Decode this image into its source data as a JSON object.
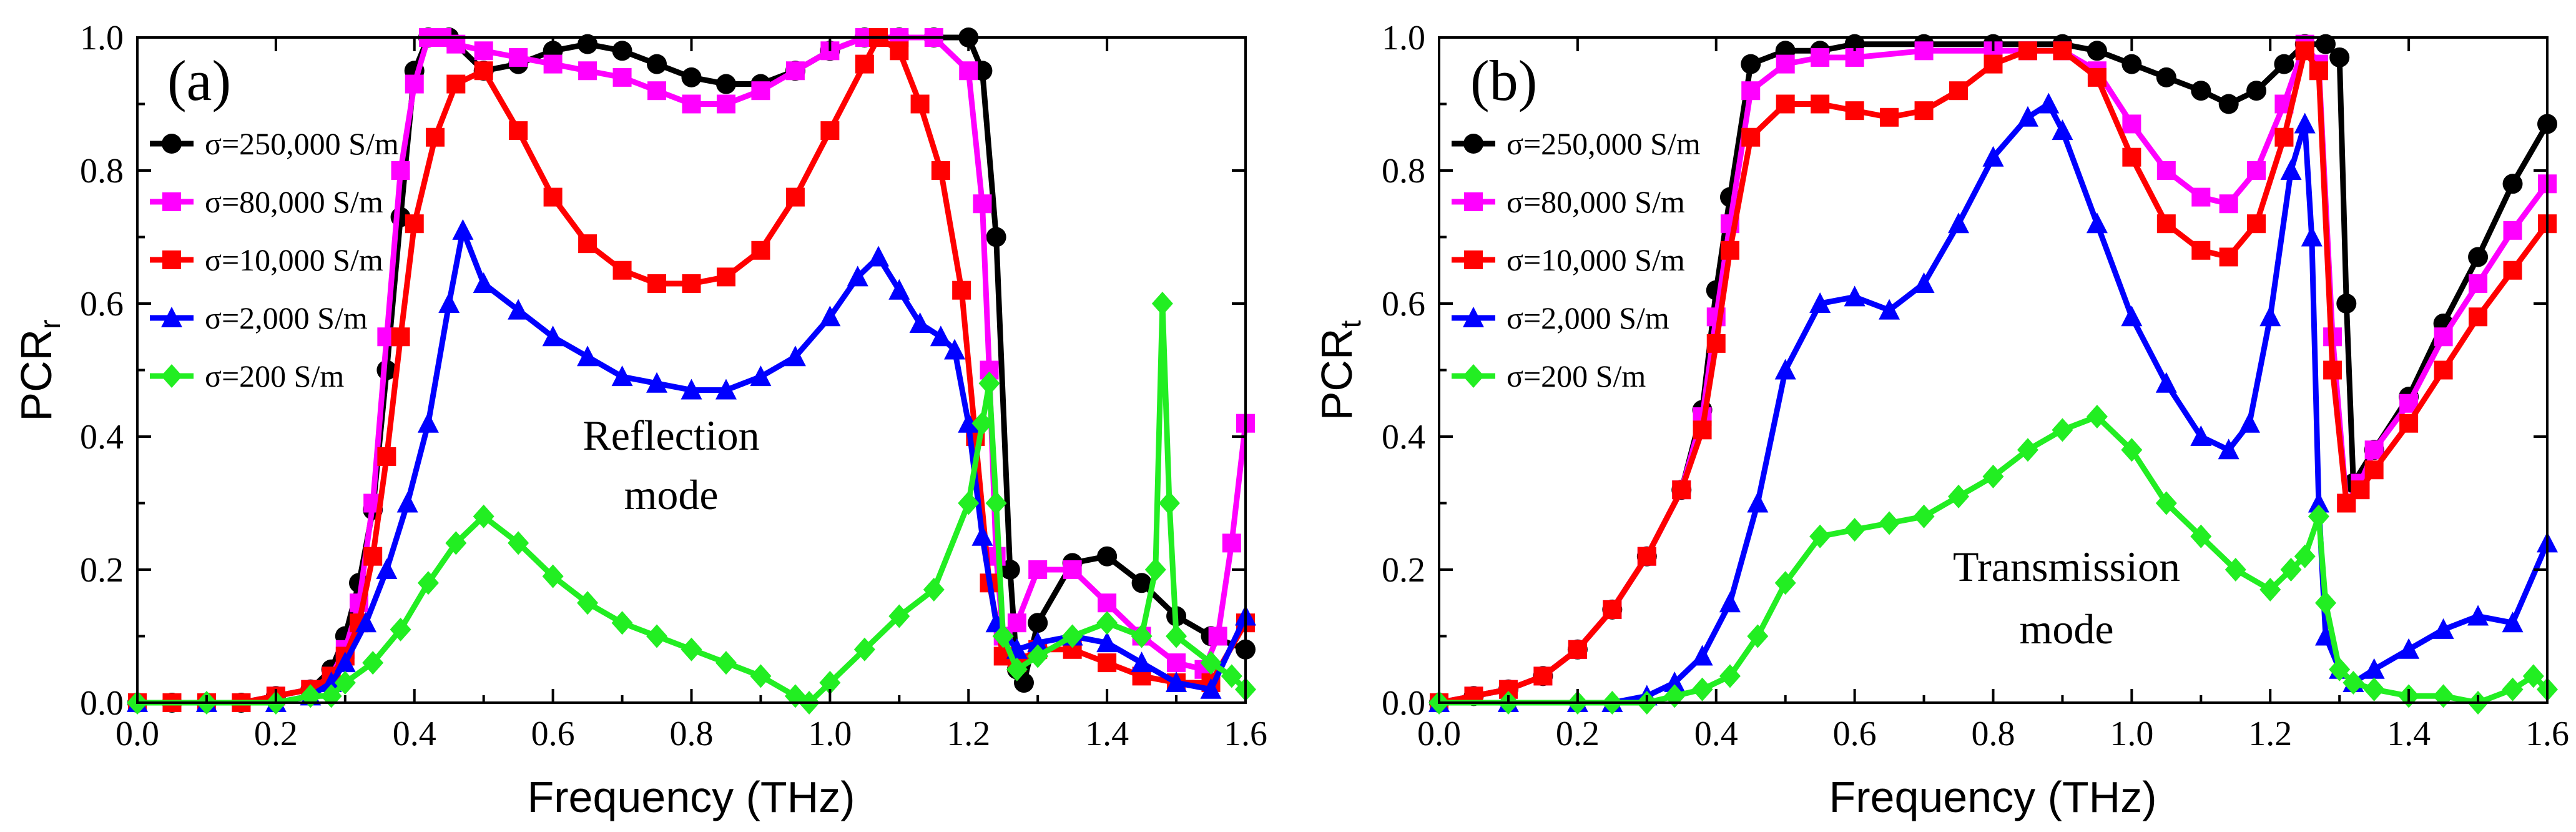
{
  "chart_data": [
    {
      "panel": "(a)",
      "type": "line",
      "xlabel": "Frequency (THz)",
      "ylabel_main": "PCR",
      "ylabel_sub": "r",
      "xlim": [
        0.0,
        1.6
      ],
      "ylim": [
        0.0,
        1.0
      ],
      "xticks": [
        "0.0",
        "0.2",
        "0.4",
        "0.6",
        "0.8",
        "1.0",
        "1.2",
        "1.4",
        "1.6"
      ],
      "yticks": [
        "0.0",
        "0.2",
        "0.4",
        "0.6",
        "0.8",
        "1.0"
      ],
      "annotation": [
        "Reflection",
        "mode"
      ],
      "series": [
        {
          "name": "σ=250,000 S/m",
          "color": "#000000",
          "marker": "circle",
          "x": [
            0.0,
            0.05,
            0.1,
            0.15,
            0.2,
            0.25,
            0.28,
            0.3,
            0.32,
            0.34,
            0.36,
            0.38,
            0.4,
            0.42,
            0.45,
            0.5,
            0.55,
            0.6,
            0.65,
            0.7,
            0.75,
            0.8,
            0.85,
            0.9,
            0.95,
            1.0,
            1.05,
            1.1,
            1.15,
            1.2,
            1.22,
            1.24,
            1.26,
            1.27,
            1.28,
            1.3,
            1.35,
            1.4,
            1.45,
            1.5,
            1.55,
            1.6
          ],
          "y": [
            0.0,
            0.0,
            0.0,
            0.0,
            0.01,
            0.02,
            0.05,
            0.1,
            0.18,
            0.29,
            0.5,
            0.73,
            0.95,
            1.0,
            1.0,
            0.95,
            0.96,
            0.98,
            0.99,
            0.98,
            0.96,
            0.94,
            0.93,
            0.93,
            0.95,
            0.98,
            1.0,
            1.0,
            1.0,
            1.0,
            0.95,
            0.7,
            0.2,
            0.05,
            0.03,
            0.12,
            0.21,
            0.22,
            0.18,
            0.13,
            0.1,
            0.08
          ]
        },
        {
          "name": "σ=80,000 S/m",
          "color": "#ff00ff",
          "marker": "square",
          "x": [
            0.0,
            0.05,
            0.1,
            0.15,
            0.2,
            0.25,
            0.28,
            0.3,
            0.32,
            0.34,
            0.36,
            0.38,
            0.4,
            0.42,
            0.44,
            0.46,
            0.5,
            0.55,
            0.6,
            0.65,
            0.7,
            0.75,
            0.8,
            0.85,
            0.9,
            0.95,
            1.0,
            1.05,
            1.1,
            1.15,
            1.2,
            1.22,
            1.23,
            1.24,
            1.25,
            1.27,
            1.3,
            1.35,
            1.4,
            1.45,
            1.5,
            1.54,
            1.56,
            1.58,
            1.6
          ],
          "y": [
            0.0,
            0.0,
            0.0,
            0.0,
            0.01,
            0.02,
            0.04,
            0.08,
            0.15,
            0.3,
            0.55,
            0.8,
            0.93,
            1.0,
            1.0,
            0.99,
            0.98,
            0.97,
            0.96,
            0.95,
            0.94,
            0.92,
            0.9,
            0.9,
            0.92,
            0.95,
            0.98,
            1.0,
            1.0,
            1.0,
            0.95,
            0.75,
            0.5,
            0.22,
            0.1,
            0.12,
            0.2,
            0.2,
            0.15,
            0.1,
            0.06,
            0.05,
            0.1,
            0.24,
            0.42
          ]
        },
        {
          "name": "σ=10,000 S/m",
          "color": "#ff0000",
          "marker": "square",
          "x": [
            0.0,
            0.05,
            0.1,
            0.15,
            0.2,
            0.25,
            0.28,
            0.3,
            0.32,
            0.34,
            0.36,
            0.38,
            0.4,
            0.43,
            0.46,
            0.5,
            0.55,
            0.6,
            0.65,
            0.7,
            0.75,
            0.8,
            0.85,
            0.9,
            0.95,
            1.0,
            1.05,
            1.07,
            1.1,
            1.13,
            1.16,
            1.19,
            1.21,
            1.23,
            1.25,
            1.27,
            1.3,
            1.35,
            1.4,
            1.45,
            1.5,
            1.55,
            1.6
          ],
          "y": [
            0.0,
            0.0,
            0.0,
            0.0,
            0.01,
            0.02,
            0.04,
            0.07,
            0.12,
            0.22,
            0.37,
            0.55,
            0.72,
            0.85,
            0.93,
            0.95,
            0.86,
            0.76,
            0.69,
            0.65,
            0.63,
            0.63,
            0.64,
            0.68,
            0.76,
            0.86,
            0.96,
            1.0,
            0.98,
            0.9,
            0.8,
            0.62,
            0.4,
            0.18,
            0.07,
            0.06,
            0.08,
            0.08,
            0.06,
            0.04,
            0.03,
            0.03,
            0.12
          ]
        },
        {
          "name": "σ=2,000 S/m",
          "color": "#0000ff",
          "marker": "triangle",
          "x": [
            0.0,
            0.1,
            0.2,
            0.25,
            0.28,
            0.3,
            0.33,
            0.36,
            0.39,
            0.42,
            0.45,
            0.47,
            0.5,
            0.55,
            0.6,
            0.65,
            0.7,
            0.75,
            0.8,
            0.85,
            0.9,
            0.95,
            1.0,
            1.04,
            1.07,
            1.1,
            1.13,
            1.16,
            1.18,
            1.2,
            1.22,
            1.24,
            1.27,
            1.3,
            1.35,
            1.4,
            1.45,
            1.5,
            1.55,
            1.6
          ],
          "y": [
            0.0,
            0.0,
            0.0,
            0.01,
            0.03,
            0.06,
            0.12,
            0.2,
            0.3,
            0.42,
            0.6,
            0.71,
            0.63,
            0.59,
            0.55,
            0.52,
            0.49,
            0.48,
            0.47,
            0.47,
            0.49,
            0.52,
            0.58,
            0.64,
            0.67,
            0.62,
            0.57,
            0.55,
            0.53,
            0.42,
            0.25,
            0.12,
            0.08,
            0.09,
            0.1,
            0.09,
            0.06,
            0.03,
            0.02,
            0.13
          ]
        },
        {
          "name": "σ=200 S/m",
          "color": "#22ee22",
          "marker": "diamond",
          "x": [
            0.0,
            0.1,
            0.2,
            0.25,
            0.28,
            0.3,
            0.34,
            0.38,
            0.42,
            0.46,
            0.5,
            0.55,
            0.6,
            0.65,
            0.7,
            0.75,
            0.8,
            0.85,
            0.9,
            0.95,
            0.97,
            1.0,
            1.05,
            1.1,
            1.15,
            1.2,
            1.22,
            1.23,
            1.24,
            1.25,
            1.27,
            1.3,
            1.35,
            1.4,
            1.45,
            1.47,
            1.48,
            1.49,
            1.5,
            1.55,
            1.58,
            1.6
          ],
          "y": [
            0.0,
            0.0,
            0.0,
            0.01,
            0.01,
            0.03,
            0.06,
            0.11,
            0.18,
            0.24,
            0.28,
            0.24,
            0.19,
            0.15,
            0.12,
            0.1,
            0.08,
            0.06,
            0.04,
            0.01,
            0.0,
            0.03,
            0.08,
            0.13,
            0.17,
            0.3,
            0.42,
            0.48,
            0.3,
            0.1,
            0.05,
            0.07,
            0.1,
            0.12,
            0.1,
            0.2,
            0.6,
            0.3,
            0.1,
            0.06,
            0.04,
            0.02
          ]
        }
      ]
    },
    {
      "panel": "(b)",
      "type": "line",
      "xlabel": "Frequency (THz)",
      "ylabel_main": "PCR",
      "ylabel_sub": "t",
      "xlim": [
        0.0,
        1.6
      ],
      "ylim": [
        0.0,
        1.0
      ],
      "xticks": [
        "0.0",
        "0.2",
        "0.4",
        "0.6",
        "0.8",
        "1.0",
        "1.2",
        "1.4",
        "1.6"
      ],
      "yticks": [
        "0.0",
        "0.2",
        "0.4",
        "0.6",
        "0.8",
        "1.0"
      ],
      "annotation": [
        "Transmission",
        "mode"
      ],
      "series": [
        {
          "name": "σ=250,000 S/m",
          "color": "#000000",
          "marker": "circle",
          "x": [
            0.0,
            0.05,
            0.1,
            0.15,
            0.2,
            0.25,
            0.3,
            0.35,
            0.38,
            0.4,
            0.42,
            0.45,
            0.5,
            0.55,
            0.6,
            0.7,
            0.8,
            0.9,
            0.95,
            1.0,
            1.05,
            1.1,
            1.14,
            1.18,
            1.22,
            1.25,
            1.28,
            1.3,
            1.31,
            1.32,
            1.35,
            1.4,
            1.45,
            1.5,
            1.55,
            1.6
          ],
          "y": [
            0.0,
            0.01,
            0.02,
            0.04,
            0.08,
            0.14,
            0.22,
            0.32,
            0.44,
            0.62,
            0.76,
            0.96,
            0.98,
            0.98,
            0.99,
            0.99,
            0.99,
            0.99,
            0.98,
            0.96,
            0.94,
            0.92,
            0.9,
            0.92,
            0.96,
            0.99,
            0.99,
            0.97,
            0.6,
            0.33,
            0.38,
            0.46,
            0.57,
            0.67,
            0.78,
            0.87
          ]
        },
        {
          "name": "σ=80,000 S/m",
          "color": "#ff00ff",
          "marker": "square",
          "x": [
            0.0,
            0.05,
            0.1,
            0.15,
            0.2,
            0.25,
            0.3,
            0.35,
            0.38,
            0.4,
            0.42,
            0.45,
            0.5,
            0.55,
            0.6,
            0.7,
            0.8,
            0.85,
            0.9,
            0.95,
            1.0,
            1.05,
            1.1,
            1.14,
            1.18,
            1.22,
            1.25,
            1.27,
            1.29,
            1.31,
            1.33,
            1.35,
            1.4,
            1.45,
            1.5,
            1.55,
            1.6
          ],
          "y": [
            0.0,
            0.01,
            0.02,
            0.04,
            0.08,
            0.14,
            0.22,
            0.32,
            0.43,
            0.58,
            0.72,
            0.92,
            0.96,
            0.97,
            0.97,
            0.98,
            0.98,
            0.98,
            0.98,
            0.95,
            0.87,
            0.8,
            0.76,
            0.75,
            0.8,
            0.9,
            0.99,
            0.96,
            0.55,
            0.3,
            0.33,
            0.38,
            0.45,
            0.55,
            0.63,
            0.71,
            0.78
          ]
        },
        {
          "name": "σ=10,000 S/m",
          "color": "#ff0000",
          "marker": "square",
          "x": [
            0.0,
            0.05,
            0.1,
            0.15,
            0.2,
            0.25,
            0.3,
            0.35,
            0.38,
            0.4,
            0.42,
            0.45,
            0.5,
            0.55,
            0.6,
            0.65,
            0.7,
            0.75,
            0.8,
            0.85,
            0.9,
            0.95,
            1.0,
            1.05,
            1.1,
            1.14,
            1.18,
            1.22,
            1.25,
            1.27,
            1.29,
            1.31,
            1.33,
            1.35,
            1.4,
            1.45,
            1.5,
            1.55,
            1.6
          ],
          "y": [
            0.0,
            0.01,
            0.02,
            0.04,
            0.08,
            0.14,
            0.22,
            0.32,
            0.41,
            0.54,
            0.68,
            0.85,
            0.9,
            0.9,
            0.89,
            0.88,
            0.89,
            0.92,
            0.96,
            0.98,
            0.98,
            0.94,
            0.82,
            0.72,
            0.68,
            0.67,
            0.72,
            0.85,
            0.98,
            0.95,
            0.5,
            0.3,
            0.32,
            0.35,
            0.42,
            0.5,
            0.58,
            0.65,
            0.72
          ]
        },
        {
          "name": "σ=2,000 S/m",
          "color": "#0000ff",
          "marker": "triangle",
          "x": [
            0.0,
            0.1,
            0.2,
            0.25,
            0.3,
            0.34,
            0.38,
            0.42,
            0.46,
            0.5,
            0.55,
            0.6,
            0.65,
            0.7,
            0.75,
            0.8,
            0.85,
            0.88,
            0.9,
            0.95,
            1.0,
            1.05,
            1.1,
            1.14,
            1.17,
            1.2,
            1.23,
            1.25,
            1.26,
            1.27,
            1.28,
            1.3,
            1.32,
            1.35,
            1.4,
            1.45,
            1.5,
            1.55,
            1.6
          ],
          "y": [
            0.0,
            0.0,
            0.0,
            0.0,
            0.01,
            0.03,
            0.07,
            0.15,
            0.3,
            0.5,
            0.6,
            0.61,
            0.59,
            0.63,
            0.72,
            0.82,
            0.88,
            0.9,
            0.86,
            0.72,
            0.58,
            0.48,
            0.4,
            0.38,
            0.42,
            0.58,
            0.8,
            0.87,
            0.7,
            0.3,
            0.1,
            0.05,
            0.03,
            0.05,
            0.08,
            0.11,
            0.13,
            0.12,
            0.24
          ]
        },
        {
          "name": "σ=200 S/m",
          "color": "#22ee22",
          "marker": "diamond",
          "x": [
            0.0,
            0.1,
            0.2,
            0.25,
            0.3,
            0.34,
            0.38,
            0.42,
            0.46,
            0.5,
            0.55,
            0.6,
            0.65,
            0.7,
            0.75,
            0.8,
            0.85,
            0.9,
            0.95,
            1.0,
            1.05,
            1.1,
            1.15,
            1.2,
            1.23,
            1.25,
            1.27,
            1.28,
            1.3,
            1.32,
            1.35,
            1.4,
            1.45,
            1.5,
            1.55,
            1.58,
            1.6
          ],
          "y": [
            0.0,
            0.0,
            0.0,
            0.0,
            0.0,
            0.01,
            0.02,
            0.04,
            0.1,
            0.18,
            0.25,
            0.26,
            0.27,
            0.28,
            0.31,
            0.34,
            0.38,
            0.41,
            0.43,
            0.38,
            0.3,
            0.25,
            0.2,
            0.17,
            0.2,
            0.22,
            0.28,
            0.15,
            0.05,
            0.03,
            0.02,
            0.01,
            0.01,
            0.0,
            0.02,
            0.04,
            0.02
          ]
        }
      ]
    }
  ]
}
